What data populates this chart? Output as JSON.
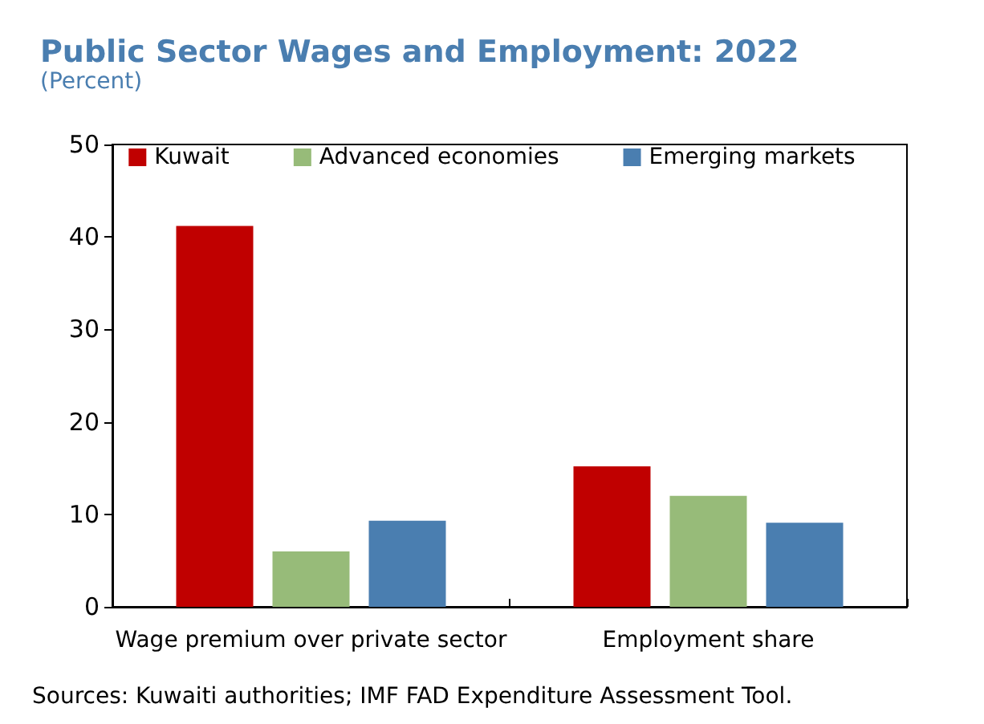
{
  "chart_data": {
    "type": "bar",
    "title": "Public Sector Wages and Employment: 2022",
    "subtitle": "(Percent)",
    "categories": [
      "Wage premium over private sector",
      "Employment share"
    ],
    "series": [
      {
        "name": "Kuwait",
        "color": "#c00000",
        "values": [
          41.2,
          15.2
        ]
      },
      {
        "name": "Advanced economies",
        "color": "#97bb79",
        "values": [
          6.0,
          12.0
        ]
      },
      {
        "name": "Emerging markets",
        "color": "#4a7eb0",
        "values": [
          9.3,
          9.1
        ]
      }
    ],
    "ylim": [
      0,
      50
    ],
    "yticks": [
      0,
      10,
      20,
      30,
      40,
      50
    ],
    "grid": false,
    "legend": "top",
    "annotations": [
      "Sources: Kuwaiti authorities; IMF FAD Expenditure Assessment Tool."
    ]
  }
}
